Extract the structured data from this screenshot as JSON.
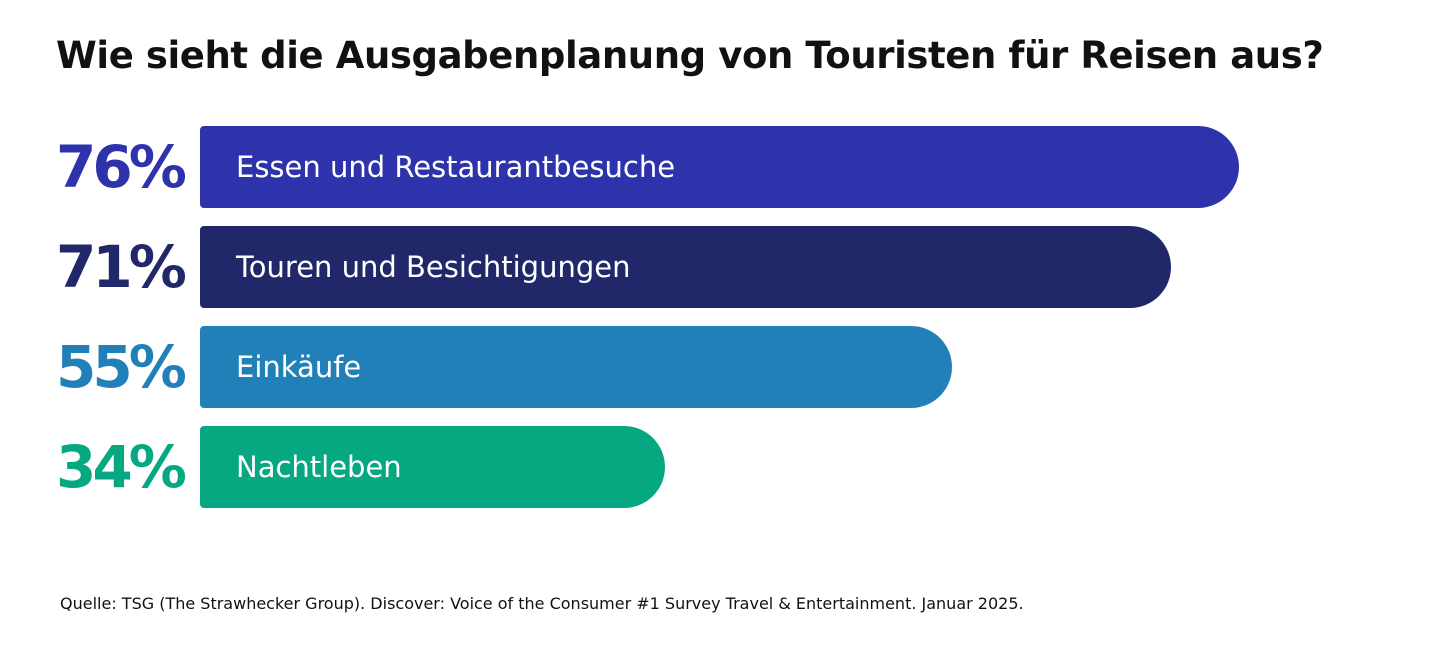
{
  "chart_data": {
    "type": "bar",
    "orientation": "horizontal",
    "title": "Wie sieht die Ausgabenplanung von Touristen für Reisen aus?",
    "categories": [
      "Essen und Restaurantbesuche",
      "Touren und Besichtigungen",
      "Einkäufe",
      "Nachtleben"
    ],
    "values": [
      76,
      71,
      55,
      34
    ],
    "value_labels": [
      "76%",
      "71%",
      "55%",
      "34%"
    ],
    "colors": [
      "#2E33AC",
      "#212869",
      "#2180B8",
      "#06A882"
    ],
    "grid": false,
    "legend": "none"
  },
  "source": "Quelle: TSG (The Strawhecker Group). Discover: Voice of the Consumer #1 Survey Travel & Entertainment. Januar 2025."
}
